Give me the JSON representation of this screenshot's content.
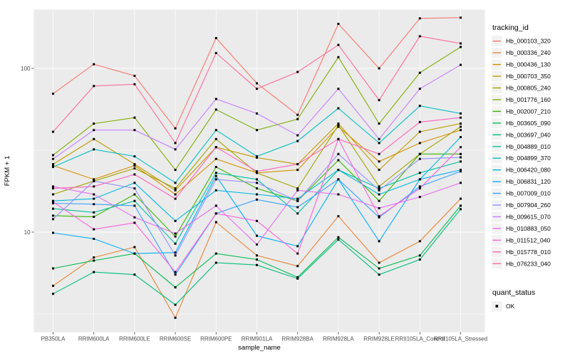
{
  "figure": {
    "background": "#FFFFFF",
    "panel_background": "#EBEBEB",
    "grid_color": "#FFFFFF",
    "tick_label_color": "#4D4D4D",
    "axis_title_color": "#000000",
    "legend_key_background": "#F2F2F2"
  },
  "chart_data": {
    "type": "line",
    "title": "",
    "xlabel": "sample_name",
    "ylabel": "FPKM + 1",
    "y_scale": "log10",
    "y_ticks": [
      100,
      10
    ],
    "y_minor_ticks": [
      31.623,
      3.162
    ],
    "ylim": [
      2.4,
      230
    ],
    "grid": true,
    "marker": "black-square",
    "x_categories": [
      "PB350LA",
      "RRIM600LA",
      "RRIM600LE",
      "RRIM600SE",
      "RRIM600PE",
      "RRIM901LA",
      "RRIM928BA",
      "RRIM928LA",
      "RRIM928LE",
      "RRII105LA_Control",
      "RRII105LA_Stressed"
    ],
    "series": [
      {
        "name": "Hb_000103_320",
        "color": "#F8766D",
        "values": [
          70,
          106,
          90,
          43,
          153,
          81,
          52,
          187,
          100,
          202,
          204
        ]
      },
      {
        "name": "Hb_000336_240",
        "color": "#EA8331",
        "values": [
          4.7,
          7.0,
          8.1,
          3.0,
          11.5,
          7.2,
          6.2,
          12.5,
          6.5,
          8.8,
          16
        ]
      },
      {
        "name": "Hb_000436_130",
        "color": "#D89000",
        "values": [
          25.5,
          21,
          25.5,
          17,
          28,
          23,
          24,
          44,
          27,
          35,
          42
        ]
      },
      {
        "name": "Hb_000703_350",
        "color": "#C09B00",
        "values": [
          26,
          37,
          26,
          18,
          33,
          28.5,
          26,
          46,
          24,
          41,
          46
        ]
      },
      {
        "name": "Hb_000805_240",
        "color": "#A3A500",
        "values": [
          17,
          20.5,
          24.5,
          18.5,
          37,
          23,
          18.5,
          45,
          19,
          30,
          44
        ]
      },
      {
        "name": "Hb_001776_160",
        "color": "#7CAE00",
        "values": [
          29.5,
          46,
          50,
          24,
          56,
          42,
          49,
          117,
          46,
          94,
          135
        ]
      },
      {
        "name": "Hb_002007_210",
        "color": "#39B600",
        "values": [
          12.6,
          12.4,
          17,
          9.4,
          25,
          18.5,
          15.5,
          27.5,
          15.5,
          30,
          30
        ]
      },
      {
        "name": "Hb_003605_090",
        "color": "#00BB4E",
        "values": [
          6.0,
          6.7,
          7.4,
          4.6,
          7.4,
          6.8,
          5.3,
          9.3,
          6.0,
          7.2,
          14.5
        ]
      },
      {
        "name": "Hb_003697_040",
        "color": "#00BF7D",
        "values": [
          4.2,
          5.7,
          5.5,
          3.6,
          6.5,
          6.3,
          5.2,
          9.0,
          5.5,
          6.8,
          13.8
        ]
      },
      {
        "name": "Hb_004889_010",
        "color": "#00C1A3",
        "values": [
          13.9,
          13.2,
          15.5,
          8.5,
          23,
          21,
          13,
          24,
          18.5,
          23,
          27
        ]
      },
      {
        "name": "Hb_004899_370",
        "color": "#00BFC4",
        "values": [
          25,
          32,
          29,
          20,
          42,
          29,
          36,
          57,
          35,
          59,
          53
        ]
      },
      {
        "name": "Hb_006420_080",
        "color": "#00BAE0",
        "values": [
          15.5,
          16,
          20,
          11.7,
          18,
          17,
          16,
          24,
          17,
          21,
          38
        ]
      },
      {
        "name": "Hb_006831_120",
        "color": "#00B0F6",
        "values": [
          9.9,
          9.1,
          7.4,
          7.5,
          22,
          9.5,
          8.2,
          21,
          8.8,
          21,
          24
        ]
      },
      {
        "name": "Hb_007009_010",
        "color": "#35A2FF",
        "values": [
          15,
          14.8,
          14.5,
          5.5,
          13,
          15.8,
          14.2,
          21,
          12.3,
          19,
          23.5
        ]
      },
      {
        "name": "Hb_007904_260",
        "color": "#9590FF",
        "values": [
          12,
          20.5,
          18.5,
          7.2,
          21,
          20,
          15.5,
          30,
          18,
          28,
          28.6
        ]
      },
      {
        "name": "Hb_009615_070",
        "color": "#C77CFF",
        "values": [
          28,
          42,
          42,
          32,
          65,
          53,
          39,
          75,
          37,
          75,
          105
        ]
      },
      {
        "name": "Hb_010883_050",
        "color": "#E76BF3",
        "values": [
          19,
          17,
          12.3,
          9.8,
          14.5,
          8.4,
          18,
          17,
          14,
          16.4,
          20
        ]
      },
      {
        "name": "Hb_011512_040",
        "color": "#FA62DB",
        "values": [
          15.3,
          10.4,
          11.4,
          5.7,
          13,
          11.7,
          7.4,
          37,
          12.5,
          18.5,
          33
        ]
      },
      {
        "name": "Hb_015778_010",
        "color": "#FF62BC",
        "values": [
          18.5,
          19,
          22.5,
          16,
          33,
          23.5,
          26,
          37,
          30,
          47,
          50
        ]
      },
      {
        "name": "Hb_076233_040",
        "color": "#FF6A98",
        "values": [
          41,
          78,
          80,
          35,
          124,
          75,
          95,
          139,
          64,
          157,
          142
        ]
      }
    ],
    "legend": {
      "position": "right",
      "color_title": "tracking_id",
      "shape_title": "quant_status",
      "shape_items": [
        {
          "label": "OK",
          "marker": "black-square"
        }
      ]
    }
  }
}
